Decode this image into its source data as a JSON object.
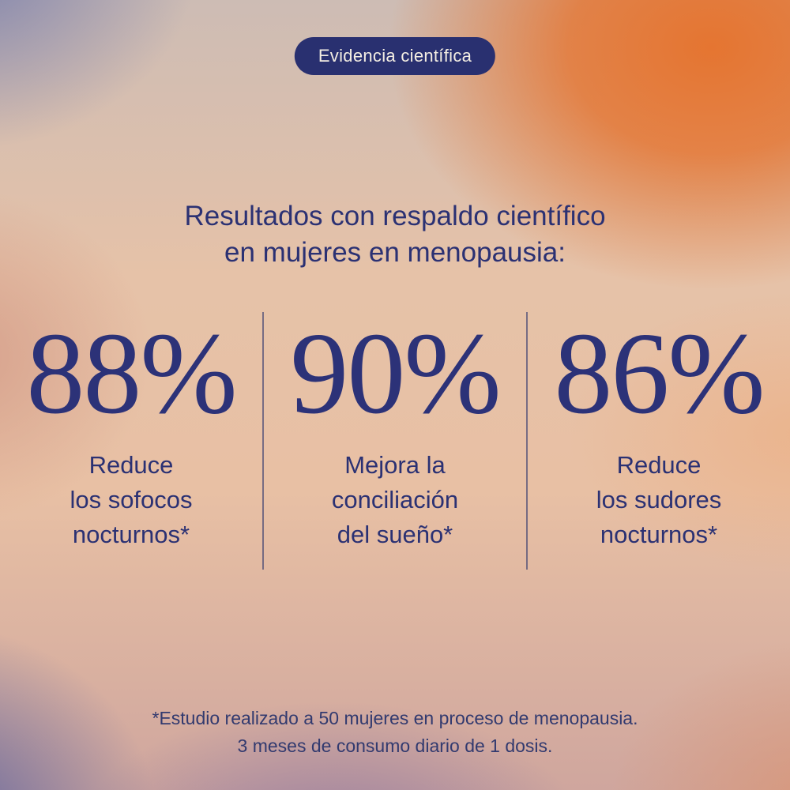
{
  "badge": {
    "label": "Evidencia científica"
  },
  "heading": {
    "lines": [
      "Resultados con respaldo científico",
      "en mujeres en menopausia:"
    ]
  },
  "stats": [
    {
      "value": "88%",
      "lines": [
        "Reduce",
        "los sofocos",
        "nocturnos*"
      ]
    },
    {
      "value": "90%",
      "lines": [
        "Mejora la",
        "conciliación",
        "del sueño*"
      ]
    },
    {
      "value": "86%",
      "lines": [
        "Reduce",
        "los sudores",
        "nocturnos*"
      ]
    }
  ],
  "footnote": {
    "lines": [
      "*Estudio realizado a 50 mujeres en proceso de menopausia.",
      "3 meses de consumo diario de 1 dosis."
    ]
  },
  "colors": {
    "navy_text": "#2b3173",
    "badge_background": "#293070",
    "badge_text": "#f4eee3",
    "divider": "#3a3f70",
    "gradient_orange": "#e6712a",
    "gradient_lavender": "#787eac",
    "gradient_peach": "#e8c3a8",
    "gradient_purple": "#5f649e",
    "gradient_salmon": "#d89678"
  }
}
